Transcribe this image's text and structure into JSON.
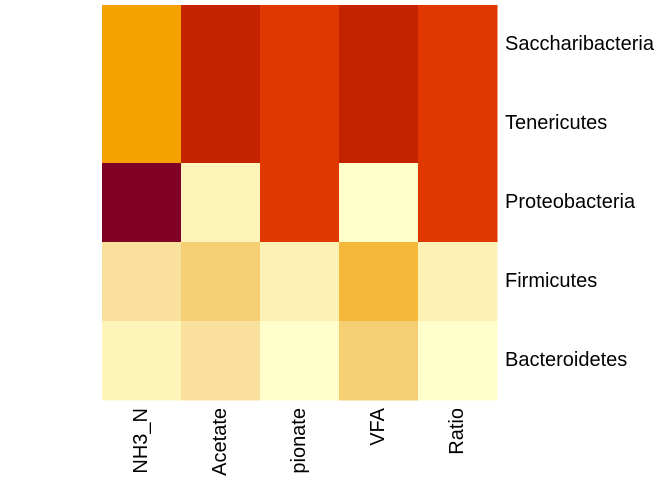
{
  "chart_data": {
    "type": "heatmap",
    "title": "",
    "xlabel": "",
    "ylabel": "",
    "columns": [
      "NH3_N",
      "Acetate",
      "pionate",
      "VFA",
      "Ratio"
    ],
    "rows": [
      "Saccharibacteria",
      "Tenericutes",
      "Proteobacteria",
      "Firmicutes",
      "Bacteroidetes"
    ],
    "cell_colors": [
      [
        "#F5A200",
        "#C42300",
        "#E03800",
        "#C42300",
        "#E03800"
      ],
      [
        "#F5A200",
        "#C42300",
        "#E03800",
        "#C42300",
        "#E03800"
      ],
      [
        "#800026",
        "#FEF4BA",
        "#E03800",
        "#FFFFCC",
        "#E03800"
      ],
      [
        "#FAE09D",
        "#F6CF75",
        "#FEF1B6",
        "#F6B83B",
        "#FEF1B6"
      ],
      [
        "#FEF4BA",
        "#FAE09D",
        "#FFFFCC",
        "#F6CF75",
        "#FFFFCC"
      ]
    ],
    "legend": "none",
    "grid": false
  }
}
